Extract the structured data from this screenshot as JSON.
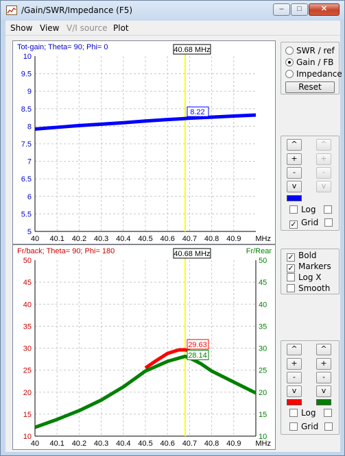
{
  "window": {
    "title": "/Gain/SWR/Impedance (F5)"
  },
  "menu": {
    "items": [
      {
        "label": "Show",
        "enabled": true
      },
      {
        "label": "View",
        "enabled": true
      },
      {
        "label": "V/I source",
        "enabled": false
      },
      {
        "label": "Plot",
        "enabled": true
      }
    ]
  },
  "mode": {
    "options": [
      {
        "label": "SWR / ref",
        "selected": false
      },
      {
        "label": "Gain / FB",
        "selected": true
      },
      {
        "label": "Impedance",
        "selected": false
      }
    ],
    "reset_label": "Reset"
  },
  "top_controls": {
    "buttons": [
      "^",
      "+",
      "-",
      "v"
    ],
    "swatch_color": "#0000ff",
    "log_label": "Log",
    "grid_label": "Grid",
    "log_checked": false,
    "grid_checked": true
  },
  "options": {
    "bold_label": "Bold",
    "bold_checked": true,
    "markers_label": "Markers",
    "markers_checked": true,
    "logx_label": "Log X",
    "logx_checked": false,
    "smooth_label": "Smooth",
    "smooth_checked": false
  },
  "bottom_controls": {
    "buttons": [
      "^",
      "+",
      "-",
      "v"
    ],
    "left_swatch_color": "#ff0000",
    "right_swatch_color": "#008000",
    "log_label": "Log",
    "grid_label": "Grid",
    "log_checked": false,
    "grid_checked": false
  },
  "chart_data": [
    {
      "type": "line",
      "title": "Tot-gain; Theta= 90; Phi= 0",
      "xlabel": "MHz",
      "ylim": [
        5,
        10
      ],
      "xlim": [
        40,
        41
      ],
      "x_ticks": [
        "40",
        "40.1",
        "40.2",
        "40.3",
        "40.4",
        "40.5",
        "40.6",
        "40.7",
        "40.8",
        "40.9"
      ],
      "y_ticks": [
        "5",
        "5.5",
        "6",
        "6.5",
        "7",
        "7.5",
        "8",
        "8.5",
        "9",
        "9.5",
        "10"
      ],
      "grid": true,
      "cursor": {
        "x": 40.68,
        "label": "40.68 MHz"
      },
      "series": [
        {
          "color": "#0000ff",
          "marker_label": "8.22",
          "x": [
            40,
            40.1,
            40.2,
            40.3,
            40.4,
            40.5,
            40.6,
            40.68,
            40.7,
            40.8,
            40.9,
            41.0
          ],
          "values": [
            7.92,
            7.97,
            8.02,
            8.06,
            8.1,
            8.15,
            8.19,
            8.22,
            8.23,
            8.26,
            8.29,
            8.32
          ]
        }
      ]
    },
    {
      "type": "line",
      "title": "Fr/back; Theta= 90; Phi= 180",
      "right_label": "Fr/Rear",
      "xlabel": "MHz",
      "ylim": [
        10,
        50
      ],
      "xlim": [
        40,
        41
      ],
      "x_ticks": [
        "40",
        "40.1",
        "40.2",
        "40.3",
        "40.4",
        "40.5",
        "40.6",
        "40.7",
        "40.8",
        "40.9"
      ],
      "y_ticks": [
        "10",
        "15",
        "20",
        "25",
        "30",
        "35",
        "40",
        "45",
        "50"
      ],
      "grid": true,
      "cursor": {
        "x": 40.68,
        "label": "40.68 MHz"
      },
      "series": [
        {
          "color": "#ff0000",
          "marker_label": "29.63",
          "x": [
            40.5,
            40.55,
            40.6,
            40.65,
            40.68,
            40.7
          ],
          "values": [
            25.5,
            27.2,
            28.8,
            29.6,
            29.63,
            29.4
          ]
        },
        {
          "color": "#008000",
          "marker_label": "28.14",
          "x": [
            40,
            40.1,
            40.2,
            40.3,
            40.4,
            40.5,
            40.6,
            40.68,
            40.7,
            40.75,
            40.8,
            40.9,
            41.0
          ],
          "values": [
            12.0,
            13.8,
            15.8,
            18.2,
            21.2,
            24.8,
            27.0,
            28.14,
            27.8,
            26.5,
            24.8,
            22.3,
            19.8
          ]
        }
      ]
    }
  ]
}
